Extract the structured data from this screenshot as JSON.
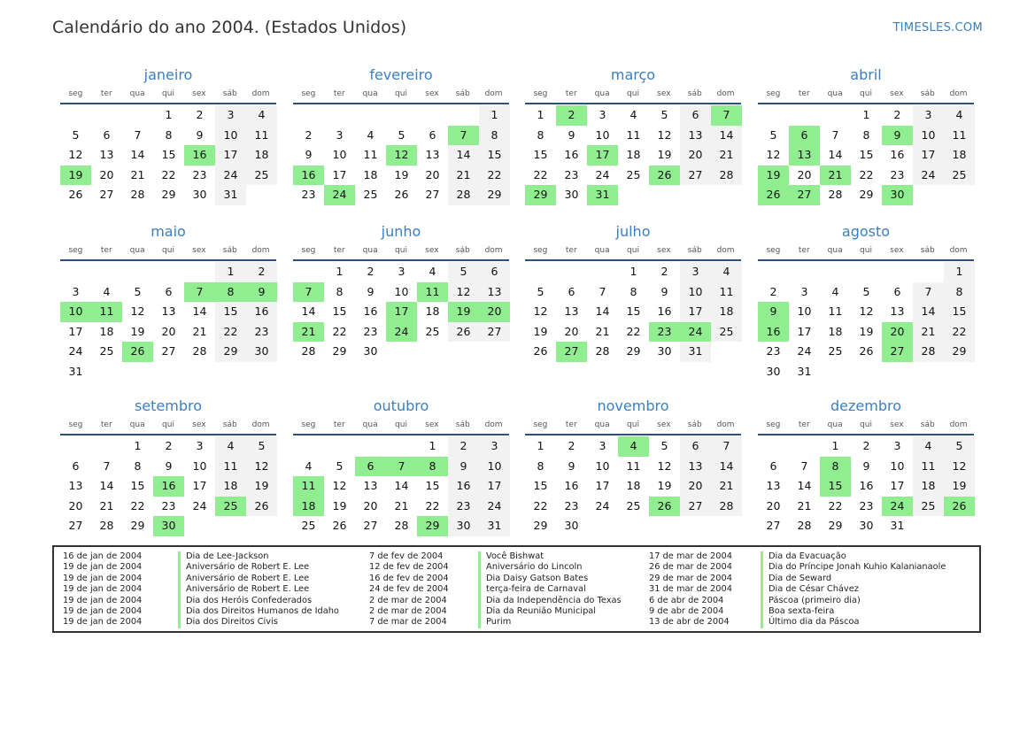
{
  "title": "Calendário do ano 2004. (Estados Unidos)",
  "brand": "TIMESLES.COM",
  "weekday_labels": [
    "seg",
    "ter",
    "qua",
    "qui",
    "sex",
    "sáb",
    "dom"
  ],
  "colors": {
    "accent": "#3a7fc0",
    "holiday": "#90ee90",
    "weekend": "#f2f2f2",
    "header_line": "#2e4f7a"
  },
  "months": [
    {
      "name": "janeiro",
      "offset": 3,
      "days": 31,
      "holidays": [
        16,
        19
      ]
    },
    {
      "name": "fevereiro",
      "offset": 6,
      "days": 29,
      "holidays": [
        7,
        12,
        16,
        24
      ]
    },
    {
      "name": "março",
      "offset": 0,
      "days": 31,
      "holidays": [
        2,
        7,
        17,
        26,
        29,
        31
      ]
    },
    {
      "name": "abril",
      "offset": 3,
      "days": 30,
      "holidays": [
        6,
        9,
        13,
        19,
        21,
        26,
        27,
        30
      ]
    },
    {
      "name": "maio",
      "offset": 5,
      "days": 31,
      "holidays": [
        7,
        8,
        9,
        10,
        11,
        26
      ]
    },
    {
      "name": "junho",
      "offset": 1,
      "days": 30,
      "holidays": [
        7,
        11,
        17,
        19,
        20,
        21,
        24
      ]
    },
    {
      "name": "julho",
      "offset": 3,
      "days": 31,
      "holidays": [
        23,
        24,
        27
      ]
    },
    {
      "name": "agosto",
      "offset": 6,
      "days": 31,
      "holidays": [
        9,
        16,
        20,
        27
      ]
    },
    {
      "name": "setembro",
      "offset": 2,
      "days": 30,
      "holidays": [
        16,
        25,
        30
      ]
    },
    {
      "name": "outubro",
      "offset": 4,
      "days": 31,
      "holidays": [
        6,
        7,
        8,
        11,
        18,
        29
      ]
    },
    {
      "name": "novembro",
      "offset": 0,
      "days": 30,
      "holidays": [
        4,
        26
      ]
    },
    {
      "name": "dezembro",
      "offset": 2,
      "days": 31,
      "holidays": [
        8,
        15,
        24,
        26
      ]
    }
  ],
  "holiday_list": [
    [
      {
        "date": "16 de jan de 2004",
        "name": "Dia de Lee-Jackson"
      },
      {
        "date": "19 de jan de 2004",
        "name": "Aniversário de Robert E. Lee"
      },
      {
        "date": "19 de jan de 2004",
        "name": "Aniversário de Robert E. Lee"
      },
      {
        "date": "19 de jan de 2004",
        "name": "Aniversário de Robert E. Lee"
      },
      {
        "date": "19 de jan de 2004",
        "name": "Dia dos Heróis Confederados"
      },
      {
        "date": "19 de jan de 2004",
        "name": "Dia dos Direitos Humanos de Idaho"
      },
      {
        "date": "19 de jan de 2004",
        "name": "Dia dos Direitos Civis"
      }
    ],
    [
      {
        "date": "7 de fev de 2004",
        "name": "Você Bishwat"
      },
      {
        "date": "12 de fev de 2004",
        "name": "Aniversário do Lincoln"
      },
      {
        "date": "16 de fev de 2004",
        "name": "Dia Daisy Gatson Bates"
      },
      {
        "date": "24 de fev de 2004",
        "name": "terça-feira de Carnaval"
      },
      {
        "date": "2 de mar de 2004",
        "name": "Dia da Independência do Texas"
      },
      {
        "date": "2 de mar de 2004",
        "name": "Dia da Reunião Municipal"
      },
      {
        "date": "7 de mar de 2004",
        "name": "Purim"
      }
    ],
    [
      {
        "date": "17 de mar de 2004",
        "name": "Dia da Evacuação"
      },
      {
        "date": "26 de mar de 2004",
        "name": "Dia do Príncipe Jonah Kuhio Kalanianaole"
      },
      {
        "date": "29 de mar de 2004",
        "name": "Dia de Seward"
      },
      {
        "date": "31 de mar de 2004",
        "name": "Dia de César Chávez"
      },
      {
        "date": "6 de abr de 2004",
        "name": "Páscoa (primeiro dia)"
      },
      {
        "date": "9 de abr de 2004",
        "name": "Boa sexta-feira"
      },
      {
        "date": "13 de abr de 2004",
        "name": "Último dia da Páscoa"
      }
    ]
  ]
}
